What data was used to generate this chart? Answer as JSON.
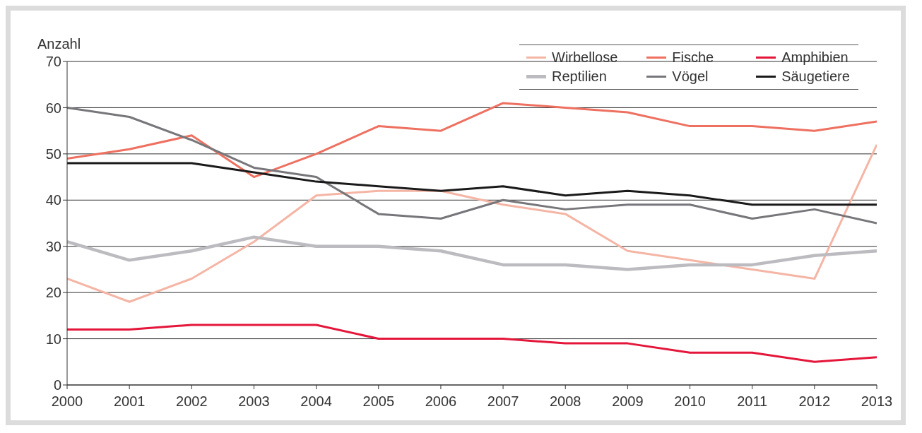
{
  "chart_data": {
    "type": "line",
    "ylabel": "Anzahl",
    "categories": [
      "2000",
      "2001",
      "2002",
      "2003",
      "2004",
      "2005",
      "2006",
      "2007",
      "2008",
      "2009",
      "2010",
      "2011",
      "2012",
      "2013"
    ],
    "series": [
      {
        "name": "Wirbellose",
        "color": "#f5b5a5",
        "values": [
          23,
          18,
          23,
          31,
          41,
          42,
          42,
          39,
          37,
          29,
          27,
          25,
          23,
          52
        ]
      },
      {
        "name": "Fische",
        "color": "#ee7060",
        "values": [
          49,
          51,
          54,
          45,
          50,
          56,
          55,
          61,
          60,
          59,
          56,
          56,
          55,
          57
        ]
      },
      {
        "name": "Amphibien",
        "color": "#e4163a",
        "values": [
          12,
          12,
          13,
          13,
          13,
          10,
          10,
          10,
          9,
          9,
          7,
          7,
          5,
          6
        ]
      },
      {
        "name": "Reptilien",
        "color": "#bcbcc0",
        "values": [
          31,
          27,
          29,
          32,
          30,
          30,
          29,
          26,
          26,
          25,
          26,
          26,
          28,
          29
        ]
      },
      {
        "name": "Vögel",
        "color": "#77777b",
        "values": [
          60,
          58,
          53,
          47,
          45,
          37,
          36,
          40,
          38,
          39,
          39,
          36,
          38,
          35
        ]
      },
      {
        "name": "Säugetiere",
        "color": "#1a1a1a",
        "values": [
          48,
          48,
          48,
          46,
          44,
          43,
          42,
          43,
          41,
          42,
          41,
          39,
          39,
          39
        ]
      }
    ],
    "ylim": [
      0,
      70
    ],
    "yticks": [
      0,
      10,
      20,
      30,
      40,
      50,
      60,
      70
    ],
    "grid": "y",
    "legend": "top right",
    "marker": "none",
    "line_style": "solid"
  }
}
